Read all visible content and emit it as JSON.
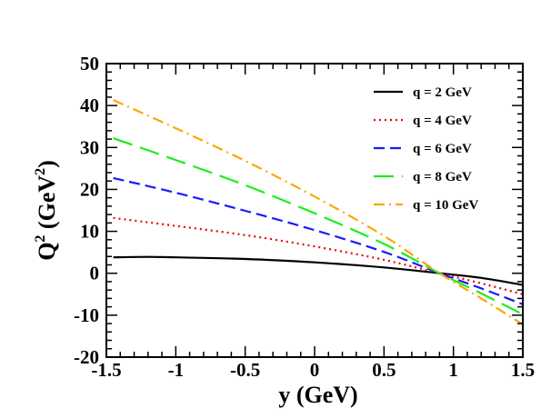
{
  "chart_data": {
    "type": "line",
    "xlabel": "y (GeV)",
    "ylabel": {
      "base": "Q",
      "base_sup": "2",
      "unit_open": " (GeV",
      "unit_sup": "2",
      "unit_close": ")"
    },
    "xlim": [
      -1.5,
      1.5
    ],
    "ylim": [
      -20,
      50
    ],
    "xticks": [
      -1.5,
      -1,
      -0.5,
      0,
      0.5,
      1,
      1.5
    ],
    "xtick_labels": [
      "-1.5",
      "-1",
      "-0.5",
      "0",
      "0.5",
      "1",
      "1.5"
    ],
    "yticks": [
      -20,
      -10,
      0,
      10,
      20,
      30,
      40,
      50
    ],
    "ytick_labels": [
      "-20",
      "-10",
      "0",
      "10",
      "20",
      "30",
      "40",
      "50"
    ],
    "grid": false,
    "legend_position": "top-right",
    "series": [
      {
        "name": "q = 2 GeV",
        "color": "#000000",
        "dash": "solid",
        "x": [
          -1.45,
          -1.2,
          -1.0,
          -0.5,
          0.0,
          0.5,
          0.9,
          1.2,
          1.5
        ],
        "y": [
          3.8,
          3.9,
          3.8,
          3.4,
          2.6,
          1.4,
          0.0,
          -1.1,
          -2.8
        ]
      },
      {
        "name": "q = 4 GeV",
        "color": "#e8000b",
        "dash": "dotted",
        "x": [
          -1.45,
          -1.0,
          -0.5,
          0.0,
          0.5,
          0.9,
          1.2,
          1.5
        ],
        "y": [
          13.2,
          11.3,
          9.1,
          6.4,
          3.2,
          0.0,
          -2.4,
          -5.0
        ]
      },
      {
        "name": "q = 6 GeV",
        "color": "#1a1aff",
        "dash": "dashed",
        "x": [
          -1.45,
          -1.0,
          -0.5,
          0.0,
          0.5,
          0.9,
          1.2,
          1.5
        ],
        "y": [
          22.7,
          19.2,
          14.9,
          10.3,
          5.1,
          0.0,
          -3.6,
          -7.4
        ]
      },
      {
        "name": "q = 8 GeV",
        "color": "#1aee1a",
        "dash": "long-dashed",
        "x": [
          -1.45,
          -1.0,
          -0.5,
          0.0,
          0.5,
          0.9,
          1.2,
          1.5
        ],
        "y": [
          32.2,
          27.0,
          21.0,
          14.3,
          7.0,
          0.0,
          -4.8,
          -9.8
        ]
      },
      {
        "name": "q = 10 GeV",
        "color": "#ffa500",
        "dash": "dash-dot",
        "x": [
          -1.45,
          -1.0,
          -0.5,
          0.0,
          0.5,
          0.9,
          1.2,
          1.5
        ],
        "y": [
          41.3,
          34.6,
          26.8,
          18.3,
          8.9,
          0.0,
          -6.0,
          -12.2
        ]
      }
    ]
  }
}
